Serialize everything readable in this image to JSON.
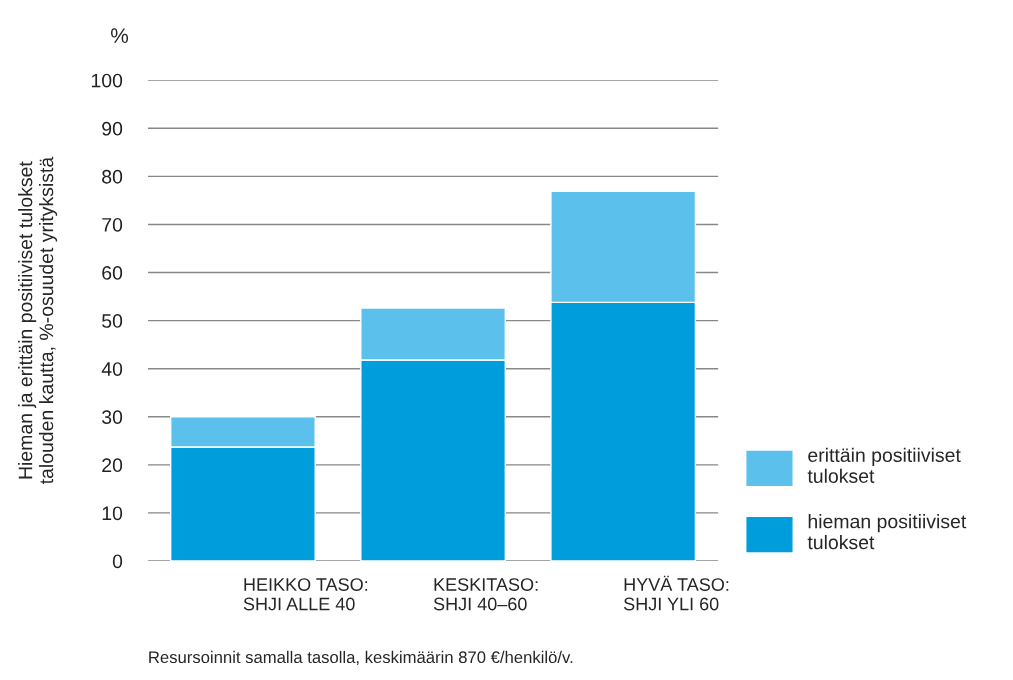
{
  "chart_data": {
    "type": "bar",
    "stacked": true,
    "ylabel": "Hieman ja erittäin positiiviset tulokset\ntalouden kautta, %-osuudet yrityksistä",
    "categories": [
      "HEIKKO TASO:\nSHJI ALLE 40",
      "KESKITASO:\nSHJI 40–60",
      "HYVÄ TASO:\nSHJI YLI 60"
    ],
    "series": [
      {
        "name": "hieman positiiviset\ntulokset",
        "color": "#009ddc",
        "values": [
          23.7,
          41.8,
          53.8
        ]
      },
      {
        "name": "erittäin positiiviset\ntulokset",
        "color": "#5bc0eb",
        "values": [
          6.3,
          10.8,
          23.1
        ]
      }
    ],
    "ylim": [
      0,
      100
    ],
    "yticks": [
      0,
      10,
      20,
      30,
      40,
      50,
      60,
      70,
      80,
      90,
      100
    ],
    "grid": "y",
    "legend": "right",
    "annotations": [
      "%",
      "Resursoinnit samalla tasolla, keskimäärin 870 €/henkilö/v."
    ]
  }
}
